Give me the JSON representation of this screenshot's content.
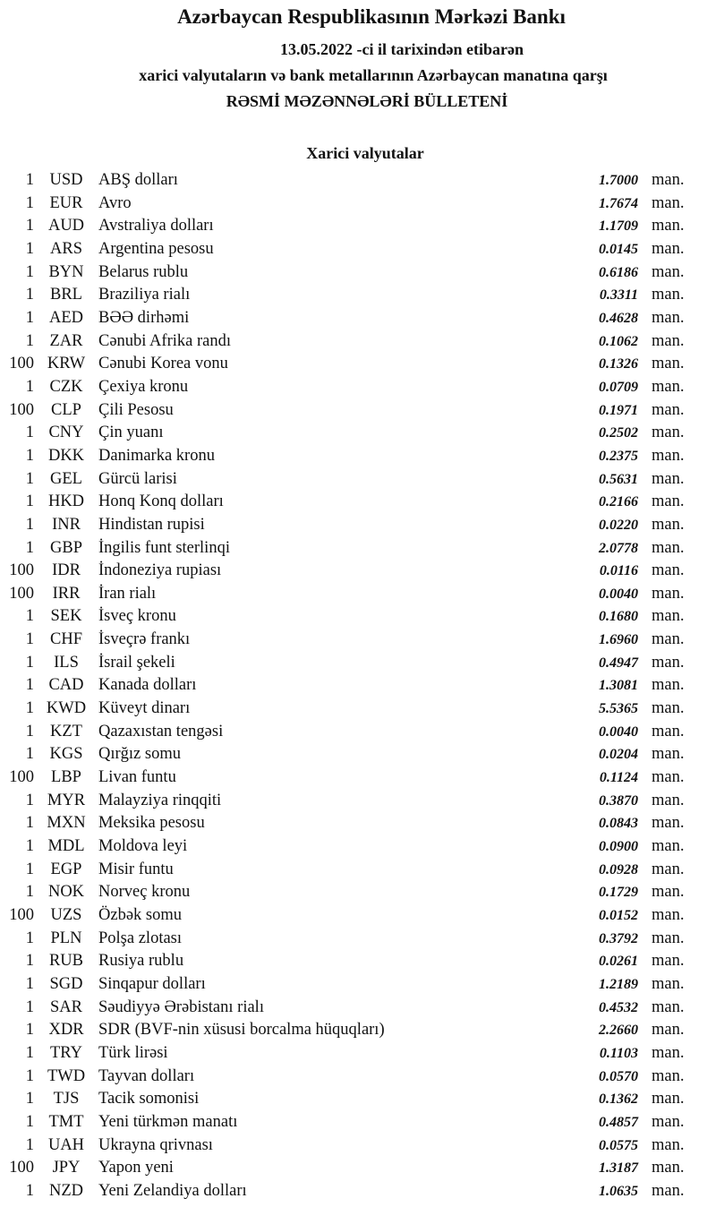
{
  "header": {
    "title": "Azərbaycan Respublikasının Mərkəzi Bankı",
    "date_line": "13.05.2022 -ci il tarixindən etibarən",
    "subtitle": "xarici valyutaların və bank metallarının Azərbaycan manatına qarşı",
    "bulletin": "RƏSMİ MƏZƏNNƏLƏRİ BÜLLETENİ"
  },
  "section_title": "Xarici valyutalar",
  "unit_label": "man.",
  "rates": [
    {
      "qty": "1",
      "code": "USD",
      "name": "ABŞ dolları",
      "rate": "1.7000"
    },
    {
      "qty": "1",
      "code": "EUR",
      "name": "Avro",
      "rate": "1.7674"
    },
    {
      "qty": "1",
      "code": "AUD",
      "name": "Avstraliya dolları",
      "rate": "1.1709"
    },
    {
      "qty": "1",
      "code": "ARS",
      "name": "Argentina pesosu",
      "rate": "0.0145"
    },
    {
      "qty": "1",
      "code": "BYN",
      "name": "Belarus rublu",
      "rate": "0.6186"
    },
    {
      "qty": "1",
      "code": "BRL",
      "name": "Braziliya rialı",
      "rate": "0.3311"
    },
    {
      "qty": "1",
      "code": "AED",
      "name": "BƏƏ dirhəmi",
      "rate": "0.4628"
    },
    {
      "qty": "1",
      "code": "ZAR",
      "name": "Cənubi Afrika randı",
      "rate": "0.1062"
    },
    {
      "qty": "100",
      "code": "KRW",
      "name": "Cənubi Korea vonu",
      "rate": "0.1326"
    },
    {
      "qty": "1",
      "code": "CZK",
      "name": "Çexiya kronu",
      "rate": "0.0709"
    },
    {
      "qty": "100",
      "code": "CLP",
      "name": "Çili Pesosu",
      "rate": "0.1971"
    },
    {
      "qty": "1",
      "code": "CNY",
      "name": "Çin yuanı",
      "rate": "0.2502"
    },
    {
      "qty": "1",
      "code": "DKK",
      "name": "Danimarka kronu",
      "rate": "0.2375"
    },
    {
      "qty": "1",
      "code": "GEL",
      "name": "Gürcü larisi",
      "rate": "0.5631"
    },
    {
      "qty": "1",
      "code": "HKD",
      "name": "Honq Konq dolları",
      "rate": "0.2166"
    },
    {
      "qty": "1",
      "code": "INR",
      "name": "Hindistan rupisi",
      "rate": "0.0220"
    },
    {
      "qty": "1",
      "code": "GBP",
      "name": "İngilis funt sterlinqi",
      "rate": "2.0778"
    },
    {
      "qty": "100",
      "code": "IDR",
      "name": "İndoneziya rupiası",
      "rate": "0.0116"
    },
    {
      "qty": "100",
      "code": "IRR",
      "name": "İran rialı",
      "rate": "0.0040"
    },
    {
      "qty": "1",
      "code": "SEK",
      "name": "İsveç kronu",
      "rate": "0.1680"
    },
    {
      "qty": "1",
      "code": "CHF",
      "name": "İsveçrə frankı",
      "rate": "1.6960"
    },
    {
      "qty": "1",
      "code": "ILS",
      "name": "İsrail şekeli",
      "rate": "0.4947"
    },
    {
      "qty": "1",
      "code": "CAD",
      "name": "Kanada dolları",
      "rate": "1.3081"
    },
    {
      "qty": "1",
      "code": "KWD",
      "name": "Küveyt dinarı",
      "rate": "5.5365"
    },
    {
      "qty": "1",
      "code": "KZT",
      "name": "Qazaxıstan tengəsi",
      "rate": "0.0040"
    },
    {
      "qty": "1",
      "code": "KGS",
      "name": "Qırğız somu",
      "rate": "0.0204"
    },
    {
      "qty": "100",
      "code": "LBP",
      "name": "Livan funtu",
      "rate": "0.1124"
    },
    {
      "qty": "1",
      "code": "MYR",
      "name": "Malayziya rinqqiti",
      "rate": "0.3870"
    },
    {
      "qty": "1",
      "code": "MXN",
      "name": "Meksika pesosu",
      "rate": "0.0843"
    },
    {
      "qty": "1",
      "code": "MDL",
      "name": "Moldova leyi",
      "rate": "0.0900"
    },
    {
      "qty": "1",
      "code": "EGP",
      "name": "Misir funtu",
      "rate": "0.0928"
    },
    {
      "qty": "1",
      "code": "NOK",
      "name": "Norveç kronu",
      "rate": "0.1729"
    },
    {
      "qty": "100",
      "code": "UZS",
      "name": "Özbək somu",
      "rate": "0.0152"
    },
    {
      "qty": "1",
      "code": "PLN",
      "name": "Polşa zlotası",
      "rate": "0.3792"
    },
    {
      "qty": "1",
      "code": "RUB",
      "name": "Rusiya rublu",
      "rate": "0.0261"
    },
    {
      "qty": "1",
      "code": "SGD",
      "name": "Sinqapur dolları",
      "rate": "1.2189"
    },
    {
      "qty": "1",
      "code": "SAR",
      "name": "Səudiyyə Ərəbistanı rialı",
      "rate": "0.4532"
    },
    {
      "qty": "1",
      "code": "XDR",
      "name": "SDR (BVF-nin xüsusi borcalma hüquqları)",
      "rate": "2.2660"
    },
    {
      "qty": "1",
      "code": "TRY",
      "name": "Türk lirəsi",
      "rate": "0.1103"
    },
    {
      "qty": "1",
      "code": "TWD",
      "name": "Tayvan dolları",
      "rate": "0.0570"
    },
    {
      "qty": "1",
      "code": "TJS",
      "name": "Tacik somonisi",
      "rate": "0.1362"
    },
    {
      "qty": "1",
      "code": "TMT",
      "name": "Yeni türkmən manatı",
      "rate": "0.4857"
    },
    {
      "qty": "1",
      "code": "UAH",
      "name": "Ukrayna qrivnası",
      "rate": "0.0575"
    },
    {
      "qty": "100",
      "code": "JPY",
      "name": "Yapon yeni",
      "rate": "1.3187"
    },
    {
      "qty": "1",
      "code": "NZD",
      "name": "Yeni Zelandiya dolları",
      "rate": "1.0635"
    }
  ]
}
